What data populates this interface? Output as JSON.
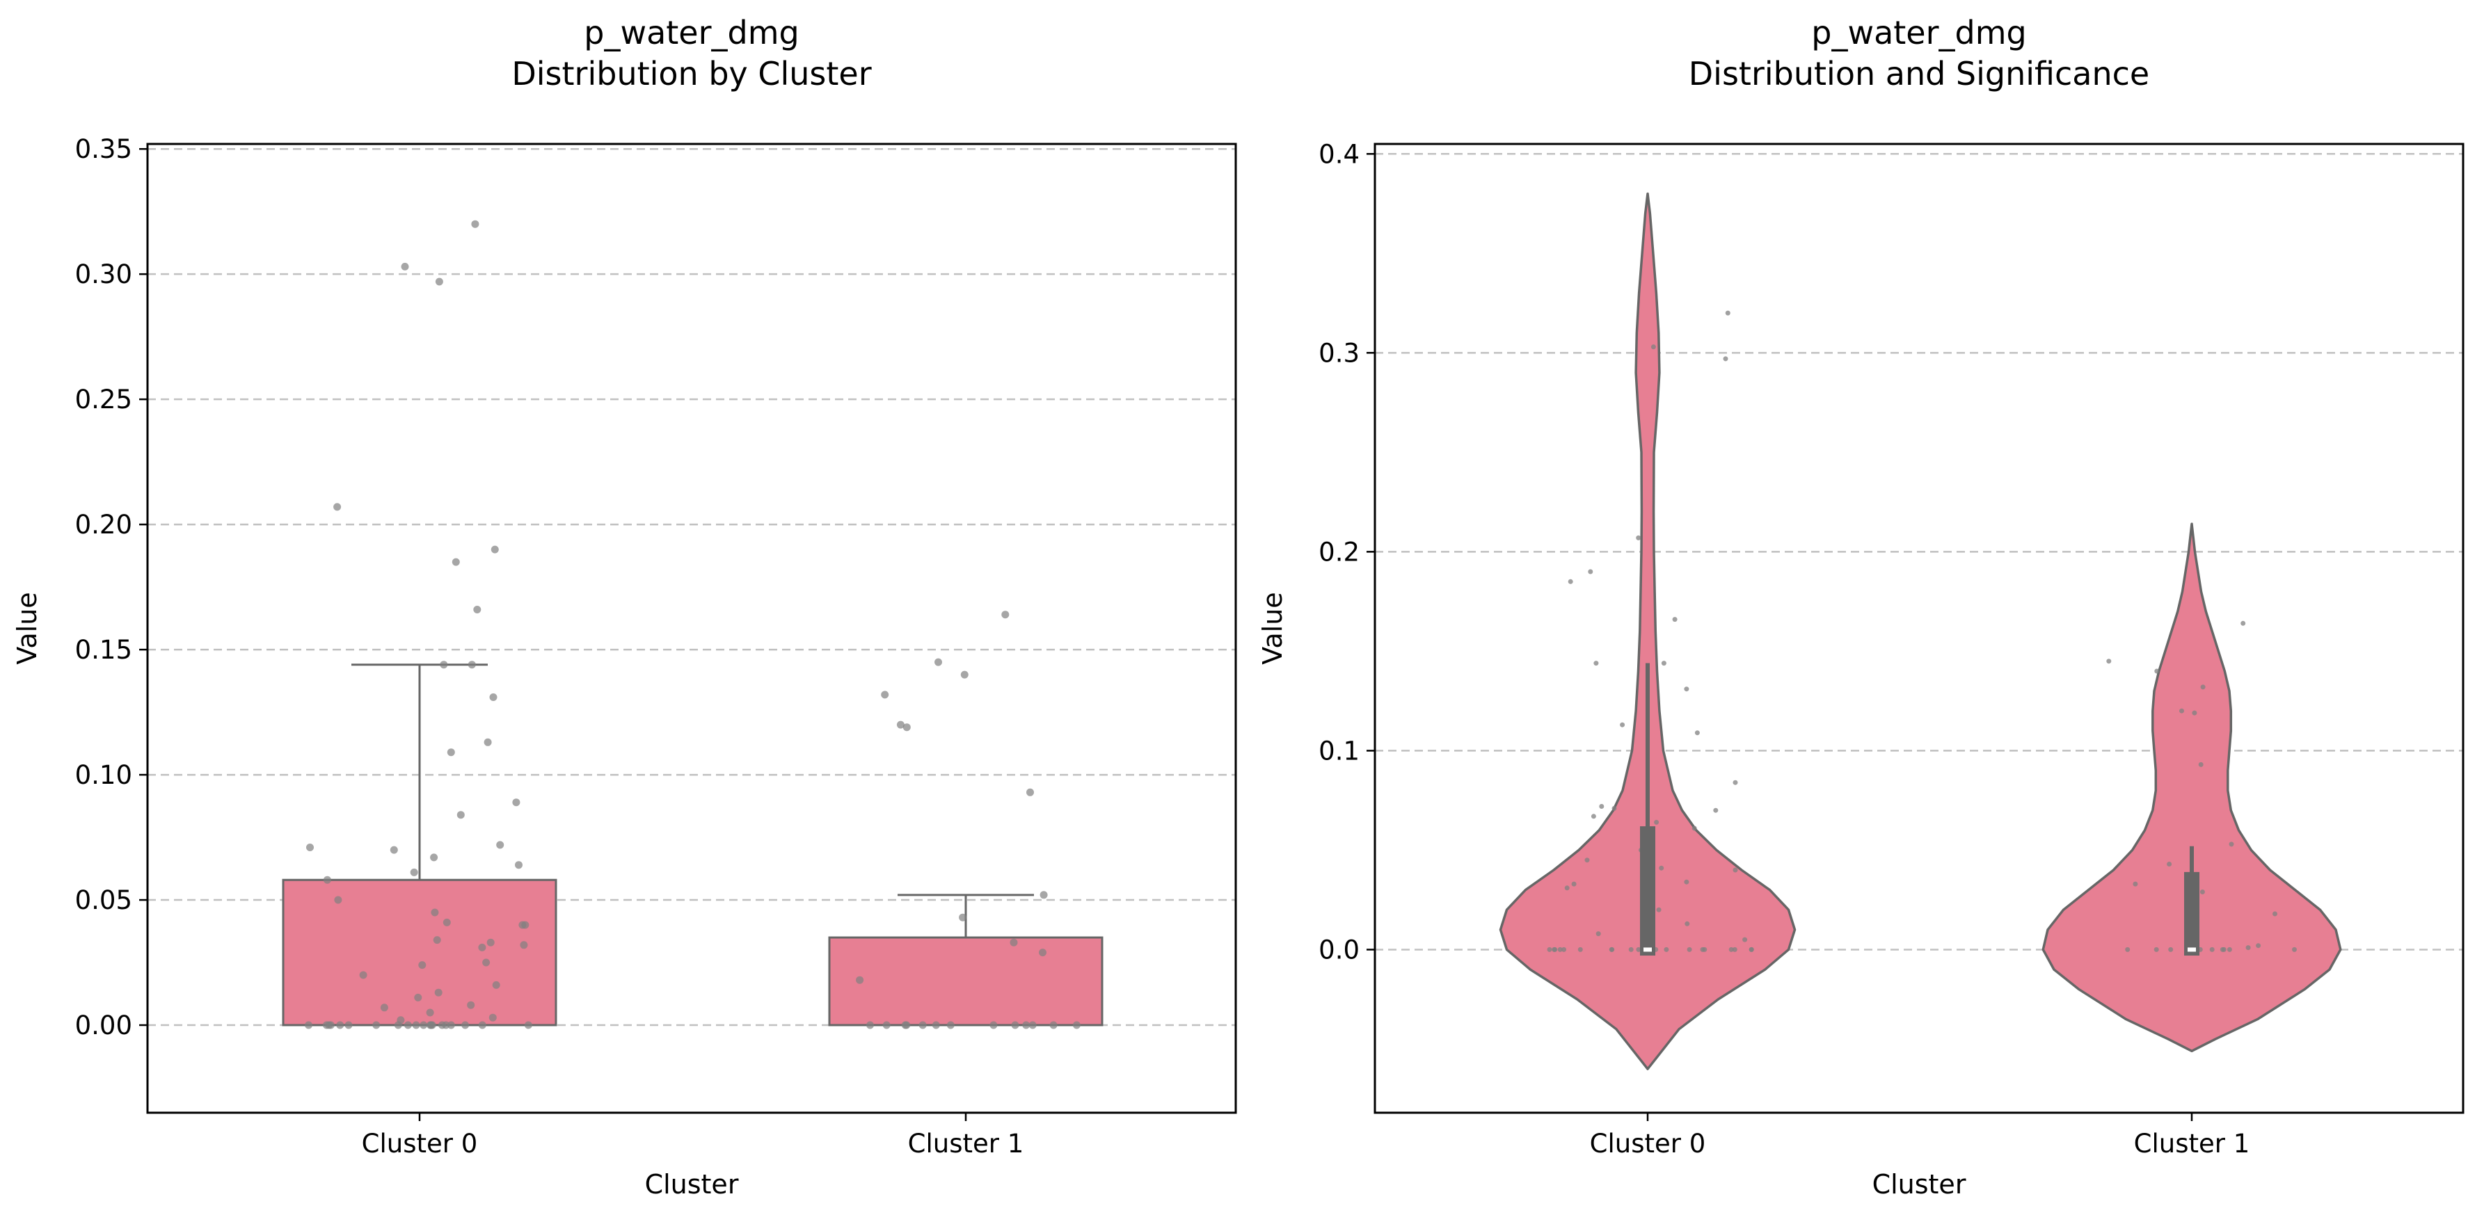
{
  "colors": {
    "box_fill": "#e77f93",
    "edge": "#666666",
    "points": "#808080",
    "grid": "#c0c0c0"
  },
  "chart_data": [
    {
      "type": "box",
      "title_line1": "p_water_dmg",
      "title_line2": "Distribution by Cluster",
      "xlabel": "Cluster",
      "ylabel": "Value",
      "ylim": [
        -0.035,
        0.352
      ],
      "yticks": [
        0.0,
        0.05,
        0.1,
        0.15,
        0.2,
        0.25,
        0.3,
        0.35
      ],
      "ytick_labels": [
        "0.00",
        "0.05",
        "0.10",
        "0.15",
        "0.20",
        "0.25",
        "0.30",
        "0.35"
      ],
      "grid": "y-dashed",
      "categories": [
        "Cluster 0",
        "Cluster 1"
      ],
      "boxes": [
        {
          "q1": 0.0,
          "median": 0.0,
          "q3": 0.058,
          "whislo": 0.0,
          "whishi": 0.144
        },
        {
          "q1": 0.0,
          "median": 0.0,
          "q3": 0.035,
          "whislo": 0.0,
          "whishi": 0.052
        }
      ],
      "points": [
        [
          0.32,
          0.297,
          0.303,
          0.207,
          0.19,
          0.185,
          0.166,
          0.144,
          0.144,
          0.131,
          0.113,
          0.109,
          0.089,
          0.084,
          0.072,
          0.071,
          0.07,
          0.067,
          0.064,
          0.061,
          0.058,
          0.05,
          0.045,
          0.041,
          0.04,
          0.04,
          0.034,
          0.033,
          0.032,
          0.031,
          0.025,
          0.024,
          0.02,
          0.016,
          0.013,
          0.011,
          0.008,
          0.007,
          0.005,
          0.003,
          0.002,
          0.0,
          0.0,
          0.0,
          0.0,
          0.0,
          0.0,
          0.0,
          0.0,
          0.0,
          0.0,
          0.0,
          0.0,
          0.0,
          0.0,
          0.0,
          0.0,
          0.0,
          0.0,
          0.0,
          0.0
        ],
        [
          0.164,
          0.145,
          0.14,
          0.132,
          0.12,
          0.119,
          0.093,
          0.052,
          0.043,
          0.033,
          0.029,
          0.018,
          0.0,
          0.0,
          0.0,
          0.0,
          0.0,
          0.0,
          0.0,
          0.0,
          0.0,
          0.0,
          0.0,
          0.0,
          0.0
        ]
      ]
    },
    {
      "type": "violin",
      "title_line1": "p_water_dmg",
      "title_line2": "Distribution and Significance",
      "xlabel": "Cluster",
      "ylabel": "Value",
      "ylim": [
        -0.082,
        0.405
      ],
      "yticks": [
        0.0,
        0.1,
        0.2,
        0.3,
        0.4
      ],
      "ytick_labels": [
        "0.0",
        "0.1",
        "0.2",
        "0.3",
        "0.4"
      ],
      "grid": "y-dashed",
      "categories": [
        "Cluster 0",
        "Cluster 1"
      ],
      "violins": [
        {
          "profile": [
            [
              -0.06,
              0.0
            ],
            [
              -0.055,
              0.05
            ],
            [
              -0.04,
              0.2
            ],
            [
              -0.025,
              0.45
            ],
            [
              -0.01,
              0.75
            ],
            [
              0.0,
              0.9
            ],
            [
              0.01,
              0.94
            ],
            [
              0.02,
              0.9
            ],
            [
              0.03,
              0.78
            ],
            [
              0.04,
              0.6
            ],
            [
              0.05,
              0.44
            ],
            [
              0.06,
              0.31
            ],
            [
              0.07,
              0.22
            ],
            [
              0.08,
              0.16
            ],
            [
              0.1,
              0.1
            ],
            [
              0.12,
              0.075
            ],
            [
              0.14,
              0.06
            ],
            [
              0.16,
              0.05
            ],
            [
              0.18,
              0.045
            ],
            [
              0.2,
              0.04
            ],
            [
              0.22,
              0.038
            ],
            [
              0.25,
              0.04
            ],
            [
              0.27,
              0.06
            ],
            [
              0.29,
              0.075
            ],
            [
              0.31,
              0.07
            ],
            [
              0.33,
              0.055
            ],
            [
              0.35,
              0.035
            ],
            [
              0.37,
              0.015
            ],
            [
              0.38,
              0.0
            ]
          ],
          "q1": -0.003,
          "median": 0.0,
          "q3": 0.062,
          "whislo": -0.003,
          "whishi": 0.144
        },
        {
          "profile": [
            [
              -0.051,
              0.0
            ],
            [
              -0.045,
              0.15
            ],
            [
              -0.035,
              0.42
            ],
            [
              -0.02,
              0.72
            ],
            [
              -0.01,
              0.88
            ],
            [
              0.0,
              0.95
            ],
            [
              0.01,
              0.92
            ],
            [
              0.02,
              0.82
            ],
            [
              0.03,
              0.66
            ],
            [
              0.04,
              0.5
            ],
            [
              0.05,
              0.38
            ],
            [
              0.06,
              0.3
            ],
            [
              0.07,
              0.25
            ],
            [
              0.08,
              0.23
            ],
            [
              0.09,
              0.23
            ],
            [
              0.1,
              0.24
            ],
            [
              0.11,
              0.25
            ],
            [
              0.12,
              0.25
            ],
            [
              0.13,
              0.24
            ],
            [
              0.14,
              0.21
            ],
            [
              0.15,
              0.17
            ],
            [
              0.16,
              0.13
            ],
            [
              0.17,
              0.09
            ],
            [
              0.18,
              0.06
            ],
            [
              0.19,
              0.04
            ],
            [
              0.2,
              0.02
            ],
            [
              0.214,
              0.0
            ]
          ],
          "q1": -0.003,
          "median": 0.0,
          "q3": 0.039,
          "whislo": -0.003,
          "whishi": 0.052
        }
      ],
      "points": [
        [
          0.32,
          0.303,
          0.297,
          0.207,
          0.19,
          0.185,
          0.166,
          0.144,
          0.144,
          0.131,
          0.113,
          0.109,
          0.084,
          0.072,
          0.071,
          0.07,
          0.067,
          0.064,
          0.061,
          0.058,
          0.05,
          0.045,
          0.041,
          0.04,
          0.034,
          0.033,
          0.031,
          0.025,
          0.02,
          0.013,
          0.008,
          0.005,
          0.0,
          0.0,
          0.0,
          0.0,
          0.0,
          0.0,
          0.0,
          0.0,
          0.0,
          0.0,
          0.0,
          0.0,
          0.0,
          0.0,
          0.0,
          0.0,
          0.0,
          0.0,
          0.0,
          0.0
        ],
        [
          0.164,
          0.145,
          0.14,
          0.132,
          0.12,
          0.119,
          0.093,
          0.053,
          0.043,
          0.033,
          0.029,
          0.018,
          0.002,
          0.001,
          0.0,
          0.0,
          0.0,
          0.0,
          0.0,
          0.0,
          0.0,
          0.0,
          0.0,
          0.0
        ]
      ]
    }
  ]
}
